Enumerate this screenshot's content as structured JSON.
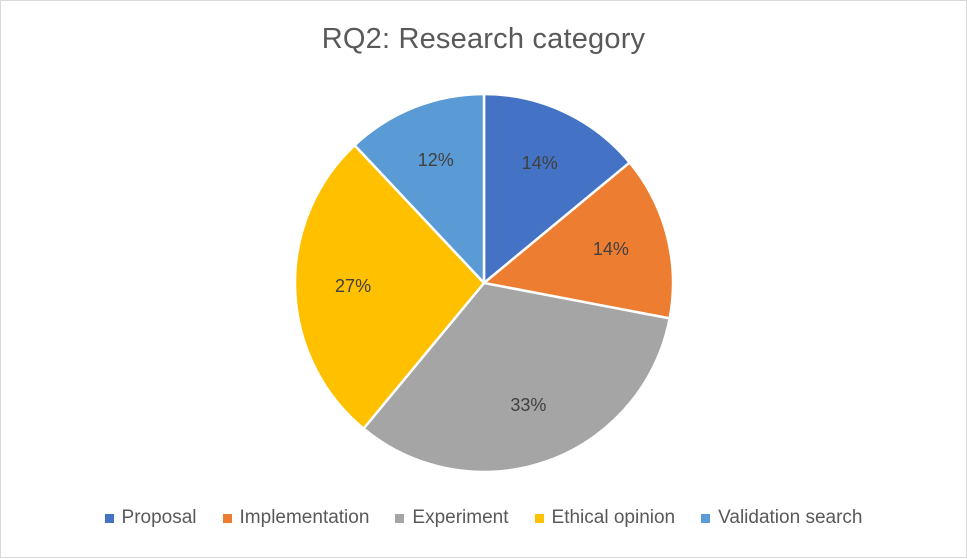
{
  "chart_data": {
    "type": "pie",
    "title": "RQ2: Research category",
    "categories": [
      "Proposal",
      "Implementation",
      "Experiment",
      "Ethical opinion",
      "Validation search"
    ],
    "values": [
      14,
      14,
      33,
      27,
      12
    ],
    "labels": [
      "14%",
      "14%",
      "33%",
      "27%",
      "12%"
    ],
    "colors": [
      "#4472c4",
      "#ed7d31",
      "#a5a5a5",
      "#ffc000",
      "#5b9bd5"
    ],
    "legend_position": "bottom",
    "start_angle": "top",
    "direction": "clockwise"
  }
}
